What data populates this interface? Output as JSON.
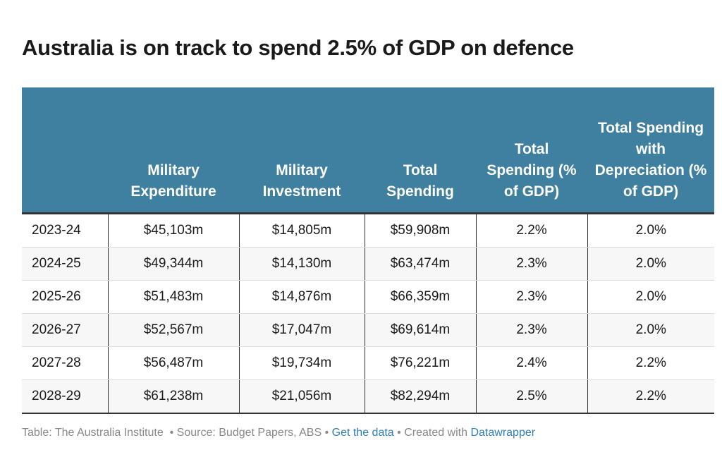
{
  "chart_data": {
    "type": "table",
    "title": "Australia is on track to spend 2.5% of GDP on defence",
    "columns": [
      "",
      "Military Expenditure",
      "Military Investment",
      "Total Spending",
      "Total Spending (% of GDP)",
      "Total Spending with Depreciation (% of GDP)"
    ],
    "rows": [
      [
        "2023-24",
        "$45,103m",
        "$14,805m",
        "$59,908m",
        "2.2%",
        "2.0%"
      ],
      [
        "2024-25",
        "$49,344m",
        "$14,130m",
        "$63,474m",
        "2.3%",
        "2.0%"
      ],
      [
        "2025-26",
        "$51,483m",
        "$14,876m",
        "$66,359m",
        "2.3%",
        "2.0%"
      ],
      [
        "2026-27",
        "$52,567m",
        "$17,047m",
        "$69,614m",
        "2.3%",
        "2.0%"
      ],
      [
        "2027-28",
        "$56,487m",
        "$19,734m",
        "$76,221m",
        "2.4%",
        "2.2%"
      ],
      [
        "2028-29",
        "$61,238m",
        "$21,056m",
        "$82,294m",
        "2.5%",
        "2.2%"
      ]
    ],
    "header_color": "#3f7f9f"
  },
  "footer": {
    "table_credit": "Table: The Australia Institute",
    "source": "• Source: Budget Papers, ABS •",
    "get_data": "Get the data",
    "created_with": "• Created with",
    "datawrapper": "Datawrapper"
  }
}
